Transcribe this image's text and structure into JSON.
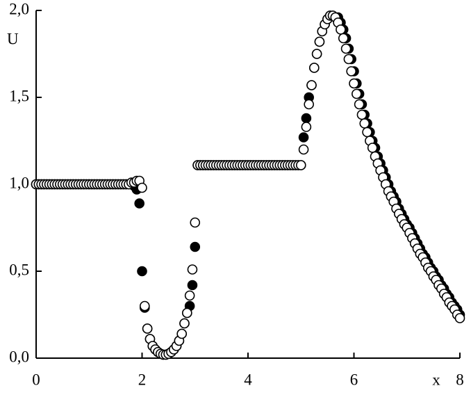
{
  "chart_data": {
    "type": "scatter",
    "x_label": "x",
    "y_label": "U",
    "xlim": [
      0,
      8
    ],
    "ylim": [
      0,
      2
    ],
    "xticks": [
      0,
      2,
      4,
      6,
      8
    ],
    "yticks": [
      {
        "value": 0,
        "label": "0,0"
      },
      {
        "value": 0.5,
        "label": "0,5"
      },
      {
        "value": 1,
        "label": "1,0"
      },
      {
        "value": 1.5,
        "label": "1,5"
      },
      {
        "value": 2,
        "label": "2,0"
      }
    ],
    "x": [
      0,
      0.05,
      0.1,
      0.15,
      0.2,
      0.25,
      0.3,
      0.35,
      0.4,
      0.45,
      0.5,
      0.55,
      0.6,
      0.65,
      0.7,
      0.75,
      0.8,
      0.85,
      0.9,
      0.95,
      1,
      1.05,
      1.1,
      1.15,
      1.2,
      1.25,
      1.3,
      1.35,
      1.4,
      1.45,
      1.5,
      1.55,
      1.6,
      1.65,
      1.7,
      1.75,
      1.8,
      1.85,
      1.9,
      1.95,
      2,
      2.05,
      2.1,
      2.15,
      2.2,
      2.25,
      2.3,
      2.35,
      2.4,
      2.45,
      2.5,
      2.55,
      2.6,
      2.65,
      2.7,
      2.75,
      2.8,
      2.85,
      2.9,
      2.95,
      3,
      3.05,
      3.1,
      3.15,
      3.2,
      3.25,
      3.3,
      3.35,
      3.4,
      3.45,
      3.5,
      3.55,
      3.6,
      3.65,
      3.7,
      3.75,
      3.8,
      3.85,
      3.9,
      3.95,
      4,
      4.05,
      4.1,
      4.15,
      4.2,
      4.25,
      4.3,
      4.35,
      4.4,
      4.45,
      4.5,
      4.55,
      4.6,
      4.65,
      4.7,
      4.75,
      4.8,
      4.85,
      4.9,
      4.95,
      5,
      5.05,
      5.1,
      5.15,
      5.2,
      5.25,
      5.3,
      5.35,
      5.4,
      5.45,
      5.5,
      5.55,
      5.6,
      5.65,
      5.7,
      5.75,
      5.8,
      5.85,
      5.9,
      5.95,
      6,
      6.05,
      6.1,
      6.15,
      6.2,
      6.25,
      6.3,
      6.35,
      6.4,
      6.45,
      6.5,
      6.55,
      6.6,
      6.65,
      6.7,
      6.75,
      6.8,
      6.85,
      6.9,
      6.95,
      7,
      7.05,
      7.1,
      7.15,
      7.2,
      7.25,
      7.3,
      7.35,
      7.4,
      7.45,
      7.5,
      7.55,
      7.6,
      7.65,
      7.7,
      7.75,
      7.8,
      7.85,
      7.9,
      7.95,
      8
    ],
    "series": [
      {
        "color": "#000000",
        "filled": true,
        "values": [
          1,
          1,
          1,
          1,
          1,
          1,
          1,
          1,
          1,
          1,
          1,
          1,
          1,
          1,
          1,
          1,
          1,
          1,
          1,
          1,
          1,
          1,
          1,
          1,
          1,
          1,
          1,
          1,
          1,
          1,
          1,
          1,
          1,
          1,
          1,
          1,
          1,
          0.99,
          0.97,
          0.89,
          0.5,
          0.29,
          0.17,
          0.11,
          0.07,
          0.05,
          0.035,
          0.025,
          0.02,
          0.02,
          0.025,
          0.035,
          0.05,
          0.07,
          0.1,
          0.14,
          0.2,
          0.26,
          0.3,
          0.42,
          0.64,
          1.11,
          1.11,
          1.11,
          1.11,
          1.11,
          1.11,
          1.11,
          1.11,
          1.11,
          1.11,
          1.11,
          1.11,
          1.11,
          1.11,
          1.11,
          1.11,
          1.11,
          1.11,
          1.11,
          1.11,
          1.11,
          1.11,
          1.11,
          1.11,
          1.11,
          1.11,
          1.11,
          1.11,
          1.11,
          1.11,
          1.11,
          1.11,
          1.11,
          1.11,
          1.11,
          1.11,
          1.11,
          1.11,
          1.11,
          1.11,
          1.27,
          1.38,
          1.5,
          1.57,
          1.67,
          1.75,
          1.82,
          1.88,
          1.92,
          1.95,
          1.97,
          1.97,
          1.96,
          1.96,
          1.93,
          1.89,
          1.84,
          1.78,
          1.72,
          1.65,
          1.58,
          1.52,
          1.46,
          1.4,
          1.35,
          1.3,
          1.25,
          1.21,
          1.16,
          1.12,
          1.08,
          1.04,
          1,
          0.96,
          0.93,
          0.9,
          0.86,
          0.83,
          0.8,
          0.77,
          0.75,
          0.72,
          0.69,
          0.66,
          0.63,
          0.6,
          0.58,
          0.55,
          0.52,
          0.5,
          0.47,
          0.45,
          0.42,
          0.4,
          0.37,
          0.35,
          0.32,
          0.3,
          0.28,
          0.25
        ]
      },
      {
        "color": "#000000",
        "filled": false,
        "values": [
          1,
          1,
          1,
          1,
          1,
          1,
          1,
          1,
          1,
          1,
          1,
          1,
          1,
          1,
          1,
          1,
          1,
          1,
          1,
          1,
          1,
          1,
          1,
          1,
          1,
          1,
          1,
          1,
          1,
          1,
          1,
          1,
          1,
          1,
          1,
          1,
          1.01,
          1.01,
          1.02,
          1.02,
          0.98,
          0.3,
          0.17,
          0.11,
          0.07,
          0.05,
          0.035,
          0.025,
          0.02,
          0.02,
          0.025,
          0.035,
          0.05,
          0.07,
          0.1,
          0.14,
          0.2,
          0.26,
          0.36,
          0.51,
          0.78,
          1.11,
          1.11,
          1.11,
          1.11,
          1.11,
          1.11,
          1.11,
          1.11,
          1.11,
          1.11,
          1.11,
          1.11,
          1.11,
          1.11,
          1.11,
          1.11,
          1.11,
          1.11,
          1.11,
          1.11,
          1.11,
          1.11,
          1.11,
          1.11,
          1.11,
          1.11,
          1.11,
          1.11,
          1.11,
          1.11,
          1.11,
          1.11,
          1.11,
          1.11,
          1.11,
          1.11,
          1.11,
          1.11,
          1.11,
          1.11,
          1.2,
          1.33,
          1.46,
          1.57,
          1.67,
          1.75,
          1.82,
          1.88,
          1.92,
          1.95,
          1.97,
          1.97,
          1.96,
          1.93,
          1.89,
          1.84,
          1.78,
          1.72,
          1.65,
          1.58,
          1.52,
          1.46,
          1.4,
          1.35,
          1.3,
          1.25,
          1.21,
          1.16,
          1.12,
          1.08,
          1.04,
          1,
          0.96,
          0.93,
          0.9,
          0.86,
          0.83,
          0.8,
          0.77,
          0.75,
          0.72,
          0.69,
          0.66,
          0.63,
          0.6,
          0.58,
          0.55,
          0.52,
          0.5,
          0.47,
          0.45,
          0.42,
          0.4,
          0.37,
          0.35,
          0.32,
          0.3,
          0.28,
          0.25,
          0.23
        ]
      }
    ]
  }
}
